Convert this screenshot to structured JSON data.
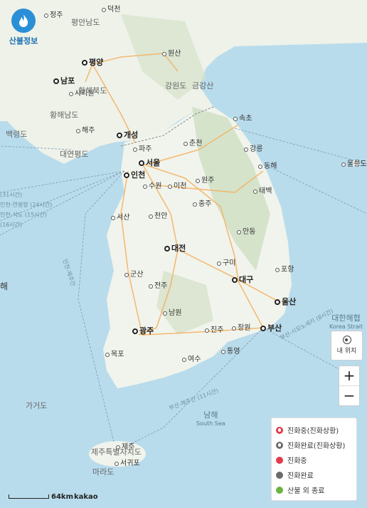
{
  "app": {
    "logo_text": "산불정보"
  },
  "cities": [
    {
      "name": "정주"
    },
    {
      "name": "덕천"
    },
    {
      "name": "원산"
    },
    {
      "name": "평양"
    },
    {
      "name": "남포"
    },
    {
      "name": "사리원"
    },
    {
      "name": "해주"
    },
    {
      "name": "개성"
    },
    {
      "name": "파주"
    },
    {
      "name": "춘천"
    },
    {
      "name": "속초"
    },
    {
      "name": "강릉"
    },
    {
      "name": "동해"
    },
    {
      "name": "서울"
    },
    {
      "name": "인천"
    },
    {
      "name": "수원"
    },
    {
      "name": "이천"
    },
    {
      "name": "원주"
    },
    {
      "name": "태백"
    },
    {
      "name": "충주"
    },
    {
      "name": "서산"
    },
    {
      "name": "천안"
    },
    {
      "name": "안동"
    },
    {
      "name": "대전"
    },
    {
      "name": "구미"
    },
    {
      "name": "포항"
    },
    {
      "name": "군산"
    },
    {
      "name": "대구"
    },
    {
      "name": "전주"
    },
    {
      "name": "울산"
    },
    {
      "name": "남원"
    },
    {
      "name": "광주"
    },
    {
      "name": "진주"
    },
    {
      "name": "창원"
    },
    {
      "name": "부산"
    },
    {
      "name": "통영"
    },
    {
      "name": "목포"
    },
    {
      "name": "여수"
    },
    {
      "name": "제주"
    },
    {
      "name": "서귀포"
    },
    {
      "name": "울릉도"
    }
  ],
  "regions": [
    "평안남도",
    "황해북도",
    "황해남도",
    "강원도",
    "금강산",
    "제주특별자치도",
    "마라도",
    "가거도",
    "백령도",
    "대연평도"
  ],
  "seas": [
    {
      "name": "대한해협",
      "sub": "Korea Strait"
    },
    {
      "name": "남해",
      "sub": "South Sea"
    }
  ],
  "routes": [
    "인천-연평항 (24시간)",
    "인천-석도 (15시간)",
    "(16시간)",
    "(31시간)",
    "인천-제주간",
    "부산-시모노세키 (8시간)",
    "부산-제주간 (11시간)"
  ],
  "edge_text": "해",
  "controls": {
    "locate_label": "내 위치",
    "zoom_in": "+",
    "zoom_out": "−"
  },
  "legend": [
    {
      "label": "진화중(진화상황)",
      "color": "#e23b4a",
      "icon": "flame-icon"
    },
    {
      "label": "진화완료(진화상황)",
      "color": "#6b6b6b",
      "icon": "flame-icon"
    },
    {
      "label": "진화중",
      "color": "#e23b4a",
      "icon": "dot-icon"
    },
    {
      "label": "진화완료",
      "color": "#6b6b6b",
      "icon": "dot-icon"
    },
    {
      "label": "산불 외 종료",
      "color": "#6ab43f",
      "icon": "dot-icon"
    }
  ],
  "scale": {
    "distance": "64km",
    "brand": "kakao"
  }
}
